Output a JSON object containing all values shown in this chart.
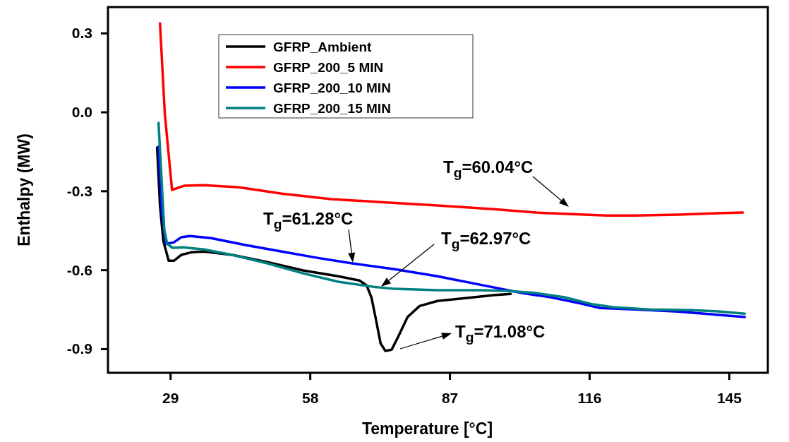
{
  "chart_data": {
    "type": "line",
    "xlabel": "Temperature [°C]",
    "ylabel": "Enthalpy (MW)",
    "xlim": [
      16,
      153
    ],
    "xticks": [
      29,
      58,
      87,
      116,
      145
    ],
    "ylim": [
      -0.99,
      0.4
    ],
    "yticks": [
      0.3,
      {
        "value": 0,
        "label": "0.0"
      },
      -0.3,
      -0.6,
      -0.9
    ],
    "grid": false,
    "legend": "top left",
    "line_style": "solid",
    "series": [
      {
        "name": "GFRP_Ambient",
        "color": "#000000",
        "x": [
          26.2,
          26.8,
          27.5,
          28.6,
          29.7,
          31.2,
          33.3,
          35.9,
          41.8,
          49.1,
          56.5,
          63.8,
          68.2,
          69.7,
          70.7,
          71.6,
          72.6,
          73.6,
          74.9,
          76.3,
          78.2,
          80.7,
          84.4,
          90.2,
          96.1,
          99.6
        ],
        "values": [
          -0.134,
          -0.354,
          -0.489,
          -0.564,
          -0.564,
          -0.542,
          -0.532,
          -0.529,
          -0.542,
          -0.569,
          -0.601,
          -0.623,
          -0.639,
          -0.658,
          -0.703,
          -0.784,
          -0.878,
          -0.907,
          -0.902,
          -0.851,
          -0.778,
          -0.736,
          -0.717,
          -0.706,
          -0.695,
          -0.69
        ]
      },
      {
        "name": "GFRP_200_5 MIN",
        "color": "#ff0000",
        "x": [
          26.8,
          27.8,
          29.3,
          31.8,
          35.9,
          43.2,
          52.1,
          62.3,
          72.6,
          84.4,
          96.1,
          104.9,
          112.3,
          119.6,
          125.5,
          134.3,
          141.6,
          147.8
        ],
        "values": [
          0.338,
          -0.005,
          -0.295,
          -0.279,
          -0.277,
          -0.285,
          -0.309,
          -0.33,
          -0.341,
          -0.354,
          -0.368,
          -0.381,
          -0.387,
          -0.392,
          -0.392,
          -0.389,
          -0.384,
          -0.381
        ]
      },
      {
        "name": "GFRP_200_10 MIN",
        "color": "#0000ff",
        "x": [
          26.5,
          27.2,
          28.0,
          29.7,
          31.2,
          33.0,
          37.4,
          44.7,
          52.1,
          59.4,
          66.7,
          75.5,
          84.4,
          93.2,
          102.0,
          107.9,
          113.8,
          118.2,
          125.5,
          134.3,
          141.6,
          148.2
        ],
        "values": [
          -0.13,
          -0.381,
          -0.5,
          -0.494,
          -0.475,
          -0.47,
          -0.478,
          -0.505,
          -0.529,
          -0.553,
          -0.574,
          -0.596,
          -0.623,
          -0.655,
          -0.687,
          -0.703,
          -0.725,
          -0.744,
          -0.749,
          -0.757,
          -0.768,
          -0.778
        ]
      },
      {
        "name": "GFRP_200_15 MIN",
        "color": "#008080",
        "x": [
          26.5,
          27.1,
          27.7,
          28.3,
          29.4,
          31.5,
          35.9,
          41.8,
          49.1,
          56.5,
          63.8,
          71.1,
          75.5,
          84.4,
          93.2,
          99.0,
          104.9,
          110.8,
          116.7,
          121.1,
          128.4,
          137.2,
          143.1,
          148.2
        ],
        "values": [
          -0.04,
          -0.247,
          -0.448,
          -0.5,
          -0.515,
          -0.513,
          -0.521,
          -0.542,
          -0.574,
          -0.612,
          -0.644,
          -0.663,
          -0.671,
          -0.676,
          -0.676,
          -0.679,
          -0.687,
          -0.703,
          -0.73,
          -0.741,
          -0.749,
          -0.752,
          -0.757,
          -0.765
        ]
      }
    ],
    "annotations": [
      "T$_{g}$=60.04°C",
      "T$_{g}$=61.28°C",
      "T$_{g}$=62.97°C",
      "T$_{g}$=71.08°C"
    ]
  }
}
